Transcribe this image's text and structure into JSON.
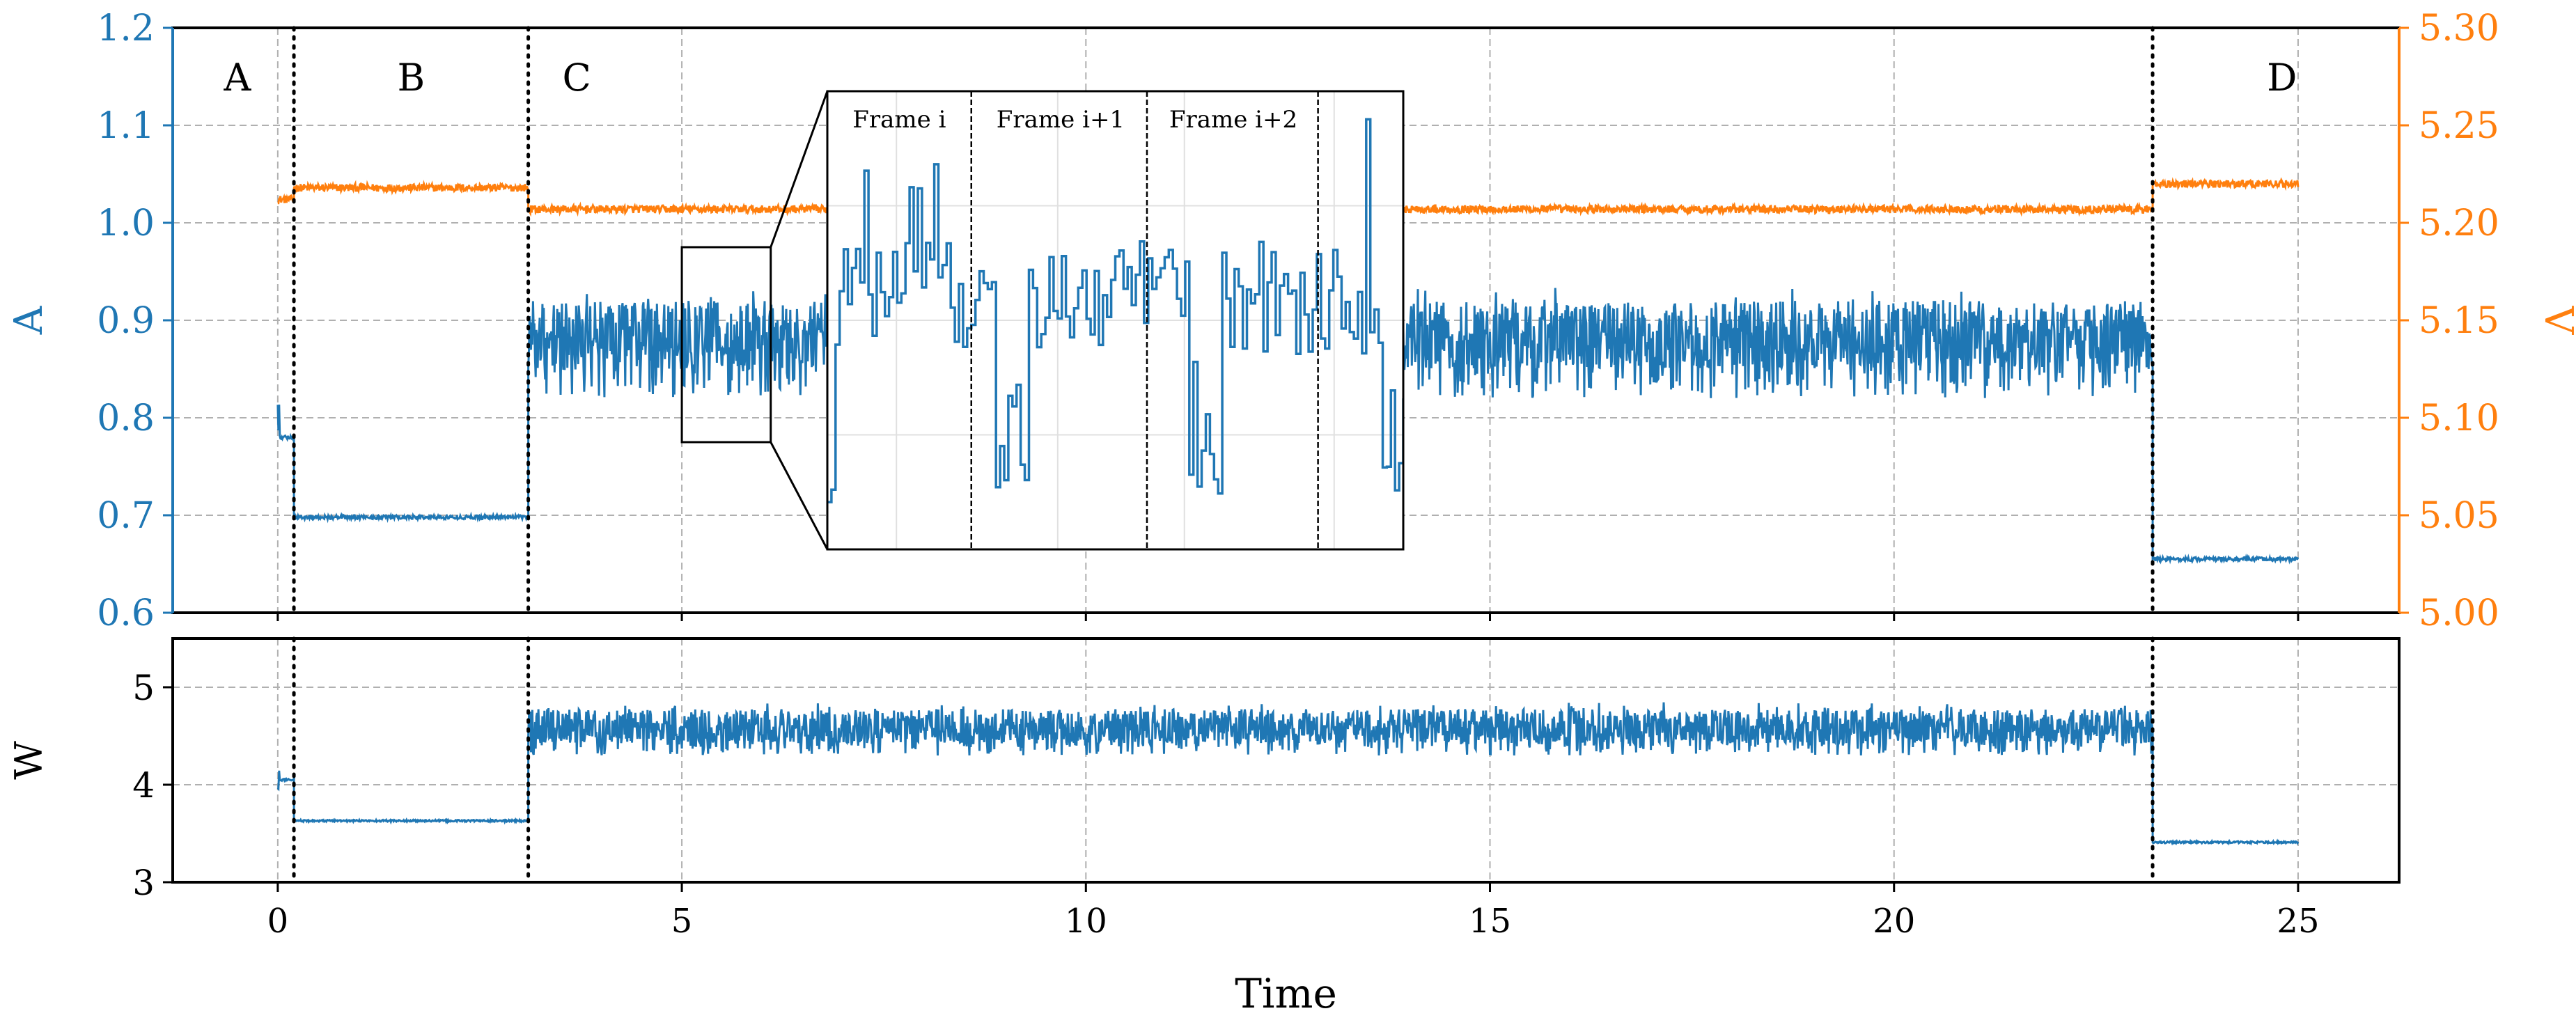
{
  "colors": {
    "current": "#1f77b4",
    "voltage": "#ff7f0e",
    "power": "#1f77b4",
    "grid": "#b0b0b0",
    "axis": "#000000"
  },
  "chart_data": [
    {
      "type": "line",
      "title": "",
      "xlabel": "Time",
      "ylabel_left": "A",
      "ylabel_right": "V",
      "xlim": [
        -1.3,
        26.25
      ],
      "ylim_left": [
        0.6,
        1.2
      ],
      "ylim_right": [
        5.0,
        5.3
      ],
      "yticks_left": [
        "0.6",
        "0.7",
        "0.8",
        "0.9",
        "1.0",
        "1.1",
        "1.2"
      ],
      "yticks_right": [
        "5.00",
        "5.05",
        "5.10",
        "5.15",
        "5.20",
        "5.25",
        "5.30"
      ],
      "grid": true,
      "phase_lines_x": [
        0.2,
        3.1,
        23.2
      ],
      "phase_labels": [
        {
          "text": "A",
          "x": -0.5
        },
        {
          "text": "B",
          "x": 1.65
        },
        {
          "text": "C",
          "x": 3.7
        },
        {
          "text": "D",
          "x": 24.8
        }
      ],
      "series": [
        {
          "name": "A",
          "axis": "left",
          "segments": [
            {
              "x0": 0.0,
              "x1": 0.2,
              "level": 0.78,
              "note": "A"
            },
            {
              "x0": 0.2,
              "x1": 3.1,
              "level": 0.698,
              "note": "B"
            },
            {
              "x0": 3.1,
              "x1": 23.2,
              "level": 0.885,
              "dips_to": 0.82,
              "note": "C"
            },
            {
              "x0": 23.2,
              "x1": 25.0,
              "level": 0.655,
              "note": "D"
            }
          ]
        },
        {
          "name": "V",
          "axis": "right",
          "segments": [
            {
              "x0": 0.0,
              "x1": 0.2,
              "level": 5.212
            },
            {
              "x0": 0.2,
              "x1": 3.1,
              "level": 5.218
            },
            {
              "x0": 3.1,
              "x1": 23.2,
              "level": 5.207
            },
            {
              "x0": 23.2,
              "x1": 25.0,
              "level": 5.22
            }
          ]
        }
      ],
      "inset": {
        "source_box": {
          "x0": 5.0,
          "x1": 6.1,
          "y0": 0.775,
          "y1": 0.975
        },
        "frame_labels": [
          "Frame i",
          "Frame i+1",
          "Frame i+2"
        ]
      }
    },
    {
      "type": "line",
      "xlabel": "Time",
      "ylabel": "W",
      "xlim": [
        -1.3,
        26.25
      ],
      "ylim": [
        3,
        5.5
      ],
      "yticks": [
        "3",
        "4",
        "5"
      ],
      "xticks": [
        "0",
        "5",
        "10",
        "15",
        "20",
        "25"
      ],
      "grid": true,
      "phase_lines_x": [
        0.2,
        3.1,
        23.2
      ],
      "series": [
        {
          "name": "W",
          "segments": [
            {
              "x0": 0.0,
              "x1": 0.2,
              "level": 4.05
            },
            {
              "x0": 0.2,
              "x1": 3.1,
              "level": 3.63
            },
            {
              "x0": 3.1,
              "x1": 23.2,
              "level": 4.6,
              "dips_to": 4.3
            },
            {
              "x0": 23.2,
              "x1": 25.0,
              "level": 3.41
            }
          ]
        }
      ]
    }
  ]
}
